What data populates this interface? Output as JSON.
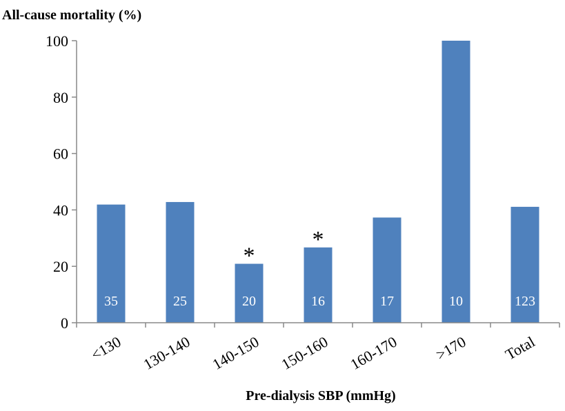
{
  "chart_data": {
    "type": "bar",
    "title": "",
    "ylabel": "All-cause mortality (%)",
    "xlabel": "Pre-dialysis SBP (mmHg)",
    "ylim": [
      0,
      100
    ],
    "yticks": [
      0,
      20,
      40,
      60,
      80,
      100
    ],
    "grid": false,
    "bar_color": "#4f81bd",
    "categories": [
      "<130",
      "130-140",
      "140-150",
      "150-160",
      "160-170",
      ">170",
      "Total"
    ],
    "values": [
      41.9,
      42.8,
      20.9,
      26.7,
      37.3,
      100.0,
      41.1
    ],
    "n_labels": [
      "35",
      "25",
      "20",
      "16",
      "17",
      "10",
      "123"
    ],
    "significance_markers": [
      "",
      "",
      "*",
      "*",
      "",
      "",
      ""
    ]
  }
}
